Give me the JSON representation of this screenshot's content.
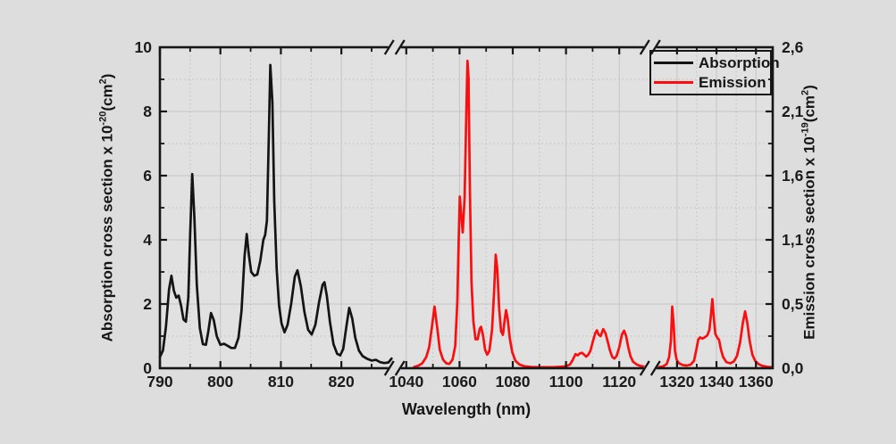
{
  "chart_data": {
    "type": "line",
    "title": "",
    "xlabel": "Wavelength (nm)",
    "ylabel_left": "Absorption cross section x 10^-20 (cm^2)",
    "ylabel_right": "Emission cross section x 10^-19 (cm^2)",
    "ylabel_left_parts": [
      {
        "t": "Absorption cross section x 10"
      },
      {
        "sup": "-20"
      },
      {
        "t": "(cm"
      },
      {
        "sup": "2"
      },
      {
        "t": ")"
      }
    ],
    "ylabel_right_parts": [
      {
        "t": "Emission cross section x 10"
      },
      {
        "sup": "-19"
      },
      {
        "t": "(cm"
      },
      {
        "sup": "2"
      },
      {
        "t": ")"
      }
    ],
    "grid": true,
    "colors": {
      "absorption": "#141414",
      "emission": "#f90f0f",
      "axis": "#161616",
      "grid_solid": "#c5c5c5",
      "grid_dotted": "#bfbfbf",
      "plot_bg": "#e1e1e1",
      "page_bg": "#dddddd",
      "text": "#1b1b1b"
    },
    "y_left": {
      "min": 0,
      "max": 10,
      "majors": [
        0,
        2,
        4,
        6,
        8,
        10
      ],
      "minors": [
        1,
        3,
        5,
        7,
        9
      ],
      "labels": [
        "0",
        "2",
        "4",
        "6",
        "8",
        "10"
      ]
    },
    "y_right": {
      "min": 0,
      "max": 2.6,
      "label_positions_left_units": [
        0,
        2,
        4,
        6,
        8,
        10
      ],
      "labels": [
        "0,0",
        "0,5",
        "1,1",
        "1,6",
        "2,1",
        "2,6"
      ]
    },
    "x_axis": {
      "breaks_frac": [
        0.383,
        0.8
      ],
      "sections": [
        {
          "range": [
            790,
            828.5
          ],
          "frac": [
            0,
            0.38
          ],
          "majors": [
            790,
            800,
            810,
            820
          ],
          "minors": [
            795,
            805,
            815,
            825
          ],
          "labels": [
            "790",
            "800",
            "810",
            "820"
          ]
        },
        {
          "range": [
            1037,
            1130
          ],
          "frac": [
            0.389,
            0.793
          ],
          "majors": [
            1040,
            1060,
            1080,
            1100,
            1120
          ],
          "minors": [
            1050,
            1070,
            1090,
            1110
          ],
          "labels": [
            "1040",
            "1060",
            "1080",
            "1100",
            "1120"
          ]
        },
        {
          "range": [
            1310,
            1368.5
          ],
          "frac": [
            0.8116,
            1.0
          ],
          "majors": [
            1320,
            1340,
            1360
          ],
          "minors": [
            1330,
            1350
          ],
          "labels": [
            "1320",
            "1340",
            "1360"
          ]
        }
      ]
    },
    "series": [
      {
        "name": "Absorption",
        "axis": "left",
        "section": 0,
        "color": "#141414",
        "points": [
          [
            790,
            0.35
          ],
          [
            790.5,
            0.55
          ],
          [
            791,
            1.3
          ],
          [
            791.5,
            2.45
          ],
          [
            791.9,
            2.88
          ],
          [
            792.3,
            2.42
          ],
          [
            792.7,
            2.2
          ],
          [
            793.1,
            2.26
          ],
          [
            793.5,
            1.95
          ],
          [
            793.9,
            1.52
          ],
          [
            794.3,
            1.45
          ],
          [
            794.7,
            2.2
          ],
          [
            795,
            4.2
          ],
          [
            795.35,
            6.05
          ],
          [
            795.7,
            4.7
          ],
          [
            796.1,
            2.6
          ],
          [
            796.6,
            1.25
          ],
          [
            797.1,
            0.75
          ],
          [
            797.6,
            0.73
          ],
          [
            798,
            1.15
          ],
          [
            798.45,
            1.72
          ],
          [
            798.9,
            1.5
          ],
          [
            799.4,
            1.0
          ],
          [
            800,
            0.73
          ],
          [
            800.6,
            0.76
          ],
          [
            801.2,
            0.7
          ],
          [
            801.8,
            0.63
          ],
          [
            802.4,
            0.63
          ],
          [
            803,
            0.95
          ],
          [
            803.5,
            1.8
          ],
          [
            804,
            3.5
          ],
          [
            804.35,
            4.18
          ],
          [
            804.7,
            3.55
          ],
          [
            805.1,
            3.0
          ],
          [
            805.6,
            2.88
          ],
          [
            806.1,
            2.92
          ],
          [
            806.6,
            3.35
          ],
          [
            807.1,
            4.0
          ],
          [
            807.4,
            4.15
          ],
          [
            807.7,
            4.6
          ],
          [
            808,
            7.2
          ],
          [
            808.25,
            9.45
          ],
          [
            808.6,
            8.3
          ],
          [
            808.9,
            5.2
          ],
          [
            809.3,
            3.1
          ],
          [
            809.7,
            1.95
          ],
          [
            810.1,
            1.4
          ],
          [
            810.6,
            1.12
          ],
          [
            811.1,
            1.35
          ],
          [
            811.7,
            2.0
          ],
          [
            812.3,
            2.85
          ],
          [
            812.75,
            3.05
          ],
          [
            813.3,
            2.55
          ],
          [
            813.9,
            1.75
          ],
          [
            814.5,
            1.2
          ],
          [
            815.1,
            1.05
          ],
          [
            815.7,
            1.35
          ],
          [
            816.3,
            2.05
          ],
          [
            816.9,
            2.6
          ],
          [
            817.2,
            2.68
          ],
          [
            817.6,
            2.25
          ],
          [
            818.1,
            1.45
          ],
          [
            818.7,
            0.75
          ],
          [
            819.3,
            0.45
          ],
          [
            819.8,
            0.4
          ],
          [
            820.3,
            0.6
          ],
          [
            820.8,
            1.25
          ],
          [
            821.3,
            1.88
          ],
          [
            821.8,
            1.55
          ],
          [
            822.3,
            0.95
          ],
          [
            822.9,
            0.55
          ],
          [
            823.5,
            0.38
          ],
          [
            824.2,
            0.3
          ],
          [
            825,
            0.24
          ],
          [
            825.7,
            0.26
          ],
          [
            826.4,
            0.19
          ],
          [
            827.1,
            0.16
          ],
          [
            827.8,
            0.18
          ],
          [
            828.3,
            0.3
          ]
        ]
      },
      {
        "name": "Emission",
        "axis": "right",
        "section": 1,
        "color": "#f90f0f",
        "points": [
          [
            1043,
            0.01
          ],
          [
            1044.5,
            0.02
          ],
          [
            1046,
            0.04
          ],
          [
            1047.5,
            0.09
          ],
          [
            1048.6,
            0.17
          ],
          [
            1049.6,
            0.33
          ],
          [
            1050.6,
            0.5
          ],
          [
            1051.6,
            0.33
          ],
          [
            1052.6,
            0.15
          ],
          [
            1053.8,
            0.07
          ],
          [
            1055,
            0.04
          ],
          [
            1056.2,
            0.035
          ],
          [
            1057.4,
            0.07
          ],
          [
            1058.4,
            0.18
          ],
          [
            1059.2,
            0.55
          ],
          [
            1059.7,
            1.05
          ],
          [
            1060.1,
            1.39
          ],
          [
            1060.6,
            1.25
          ],
          [
            1061.2,
            1.1
          ],
          [
            1061.9,
            1.38
          ],
          [
            1062.5,
            2.0
          ],
          [
            1063.0,
            2.49
          ],
          [
            1063.4,
            2.35
          ],
          [
            1063.9,
            1.45
          ],
          [
            1064.5,
            0.7
          ],
          [
            1065.2,
            0.38
          ],
          [
            1066,
            0.235
          ],
          [
            1066.8,
            0.235
          ],
          [
            1067.6,
            0.32
          ],
          [
            1068.1,
            0.335
          ],
          [
            1068.8,
            0.27
          ],
          [
            1069.6,
            0.15
          ],
          [
            1070.4,
            0.11
          ],
          [
            1071.2,
            0.14
          ],
          [
            1072.2,
            0.31
          ],
          [
            1073,
            0.62
          ],
          [
            1073.6,
            0.92
          ],
          [
            1074.2,
            0.8
          ],
          [
            1074.9,
            0.48
          ],
          [
            1075.6,
            0.3
          ],
          [
            1076.3,
            0.27
          ],
          [
            1077,
            0.4
          ],
          [
            1077.5,
            0.47
          ],
          [
            1078.1,
            0.4
          ],
          [
            1078.9,
            0.24
          ],
          [
            1079.8,
            0.13
          ],
          [
            1081,
            0.06
          ],
          [
            1082.5,
            0.03
          ],
          [
            1084.5,
            0.015
          ],
          [
            1087,
            0.01
          ],
          [
            1091,
            0.008
          ],
          [
            1095,
            0.008
          ],
          [
            1098,
            0.012
          ],
          [
            1100,
            0.016
          ],
          [
            1101.5,
            0.03
          ],
          [
            1102.5,
            0.065
          ],
          [
            1103.6,
            0.115
          ],
          [
            1104.4,
            0.104
          ],
          [
            1105.2,
            0.12
          ],
          [
            1106,
            0.125
          ],
          [
            1106.8,
            0.11
          ],
          [
            1107.6,
            0.094
          ],
          [
            1108.4,
            0.11
          ],
          [
            1109.2,
            0.143
          ],
          [
            1110,
            0.21
          ],
          [
            1111,
            0.286
          ],
          [
            1111.6,
            0.307
          ],
          [
            1112.2,
            0.273
          ],
          [
            1113,
            0.26
          ],
          [
            1114,
            0.317
          ],
          [
            1114.8,
            0.286
          ],
          [
            1115.6,
            0.221
          ],
          [
            1116.5,
            0.143
          ],
          [
            1117.4,
            0.091
          ],
          [
            1118.2,
            0.078
          ],
          [
            1119,
            0.099
          ],
          [
            1120,
            0.169
          ],
          [
            1121,
            0.273
          ],
          [
            1121.8,
            0.304
          ],
          [
            1122.6,
            0.26
          ],
          [
            1123.4,
            0.169
          ],
          [
            1124.2,
            0.099
          ],
          [
            1125.2,
            0.052
          ],
          [
            1126.5,
            0.031
          ],
          [
            1128,
            0.018
          ],
          [
            1129.5,
            0.013
          ]
        ]
      },
      {
        "name": "Emission",
        "axis": "right",
        "section": 2,
        "color": "#f90f0f",
        "legend": false,
        "points": [
          [
            1311,
            0.01
          ],
          [
            1313,
            0.015
          ],
          [
            1314.8,
            0.035
          ],
          [
            1316,
            0.09
          ],
          [
            1316.9,
            0.22
          ],
          [
            1317.6,
            0.5
          ],
          [
            1318.3,
            0.35
          ],
          [
            1319,
            0.14
          ],
          [
            1319.8,
            0.07
          ],
          [
            1321,
            0.04
          ],
          [
            1323,
            0.025
          ],
          [
            1325,
            0.022
          ],
          [
            1327,
            0.03
          ],
          [
            1328.6,
            0.06
          ],
          [
            1329.8,
            0.15
          ],
          [
            1330.8,
            0.235
          ],
          [
            1331.8,
            0.25
          ],
          [
            1332.8,
            0.24
          ],
          [
            1334,
            0.25
          ],
          [
            1335.3,
            0.265
          ],
          [
            1336.4,
            0.31
          ],
          [
            1337.3,
            0.45
          ],
          [
            1337.9,
            0.56
          ],
          [
            1338.6,
            0.42
          ],
          [
            1339.4,
            0.28
          ],
          [
            1340.3,
            0.25
          ],
          [
            1341.3,
            0.23
          ],
          [
            1342.3,
            0.15
          ],
          [
            1343.4,
            0.09
          ],
          [
            1345,
            0.05
          ],
          [
            1347,
            0.04
          ],
          [
            1348.8,
            0.055
          ],
          [
            1350.4,
            0.1
          ],
          [
            1352,
            0.21
          ],
          [
            1353.4,
            0.37
          ],
          [
            1354.5,
            0.46
          ],
          [
            1355.6,
            0.37
          ],
          [
            1356.8,
            0.22
          ],
          [
            1358.2,
            0.11
          ],
          [
            1359.6,
            0.06
          ],
          [
            1361.2,
            0.035
          ],
          [
            1363,
            0.02
          ],
          [
            1365.5,
            0.012
          ],
          [
            1368,
            0.008
          ]
        ]
      }
    ],
    "legend": {
      "position": "top-right",
      "items": [
        {
          "label": "Absorption",
          "color": "#141414"
        },
        {
          "label": "Emission",
          "color": "#f90f0f"
        }
      ]
    }
  }
}
